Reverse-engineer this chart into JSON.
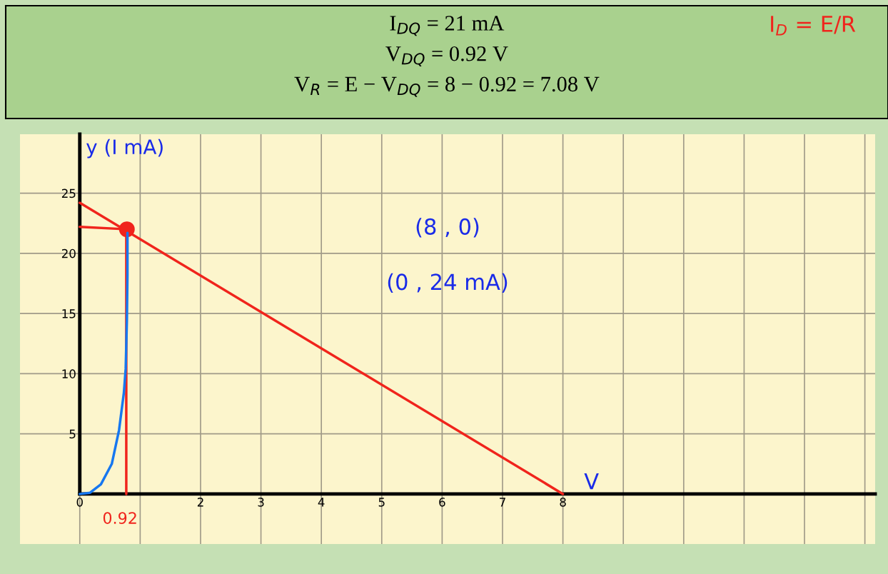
{
  "chart_data": {
    "type": "line",
    "title": "I$_{DQ}$ = 21 mA\nV$_{DQ}$ = 0.92 V\nV$_{R}$ = E − V$_{DQ}$ = 8 − 0.92 = 7.08 V",
    "xlabel": "V",
    "ylabel": "y (I mA)",
    "series": [
      {
        "color": "#1677f0",
        "x": [
          0,
          0.17,
          0.35,
          0.53,
          0.65,
          0.73,
          0.76,
          0.78,
          0.79,
          0.79
        ],
        "values": [
          0,
          0.1,
          0.8,
          2.5,
          5.3,
          8.4,
          10.4,
          14.4,
          18.3,
          21.7
        ]
      },
      {
        "color": "#f0241c",
        "x": [
          0,
          8
        ],
        "values": [
          24.2,
          0
        ]
      },
      {
        "type": "line",
        "color": "#f0241c",
        "x": [
          0,
          0.78
        ],
        "values": [
          22.2,
          22.0
        ]
      },
      {
        "type": "line",
        "color": "#f0241c",
        "x": [
          0.77,
          0.77
        ],
        "values": [
          0,
          22
        ]
      },
      {
        "type": "scatter",
        "color": "#f0241c",
        "x": [
          0.78
        ],
        "values": [
          22
        ]
      }
    ],
    "xlim": [
      -0.99,
      13.17
    ],
    "ylim": [
      -4.16,
      29.9
    ],
    "xticks": [
      0,
      {
        "value": 1,
        "label": null
      },
      2,
      3,
      4,
      5,
      6,
      7,
      8,
      {
        "value": 9,
        "label": null
      },
      {
        "value": 10,
        "label": null
      },
      {
        "value": 11,
        "label": null
      },
      {
        "value": 12,
        "label": null
      },
      {
        "value": 13,
        "label": null
      }
    ],
    "yticks": [
      5,
      10,
      15,
      20,
      25
    ],
    "grid": true,
    "annotations": [
      "I$_{D}$ = E/R",
      "(8 , 0)",
      "(0 , 24 mA)",
      "0.92"
    ]
  }
}
